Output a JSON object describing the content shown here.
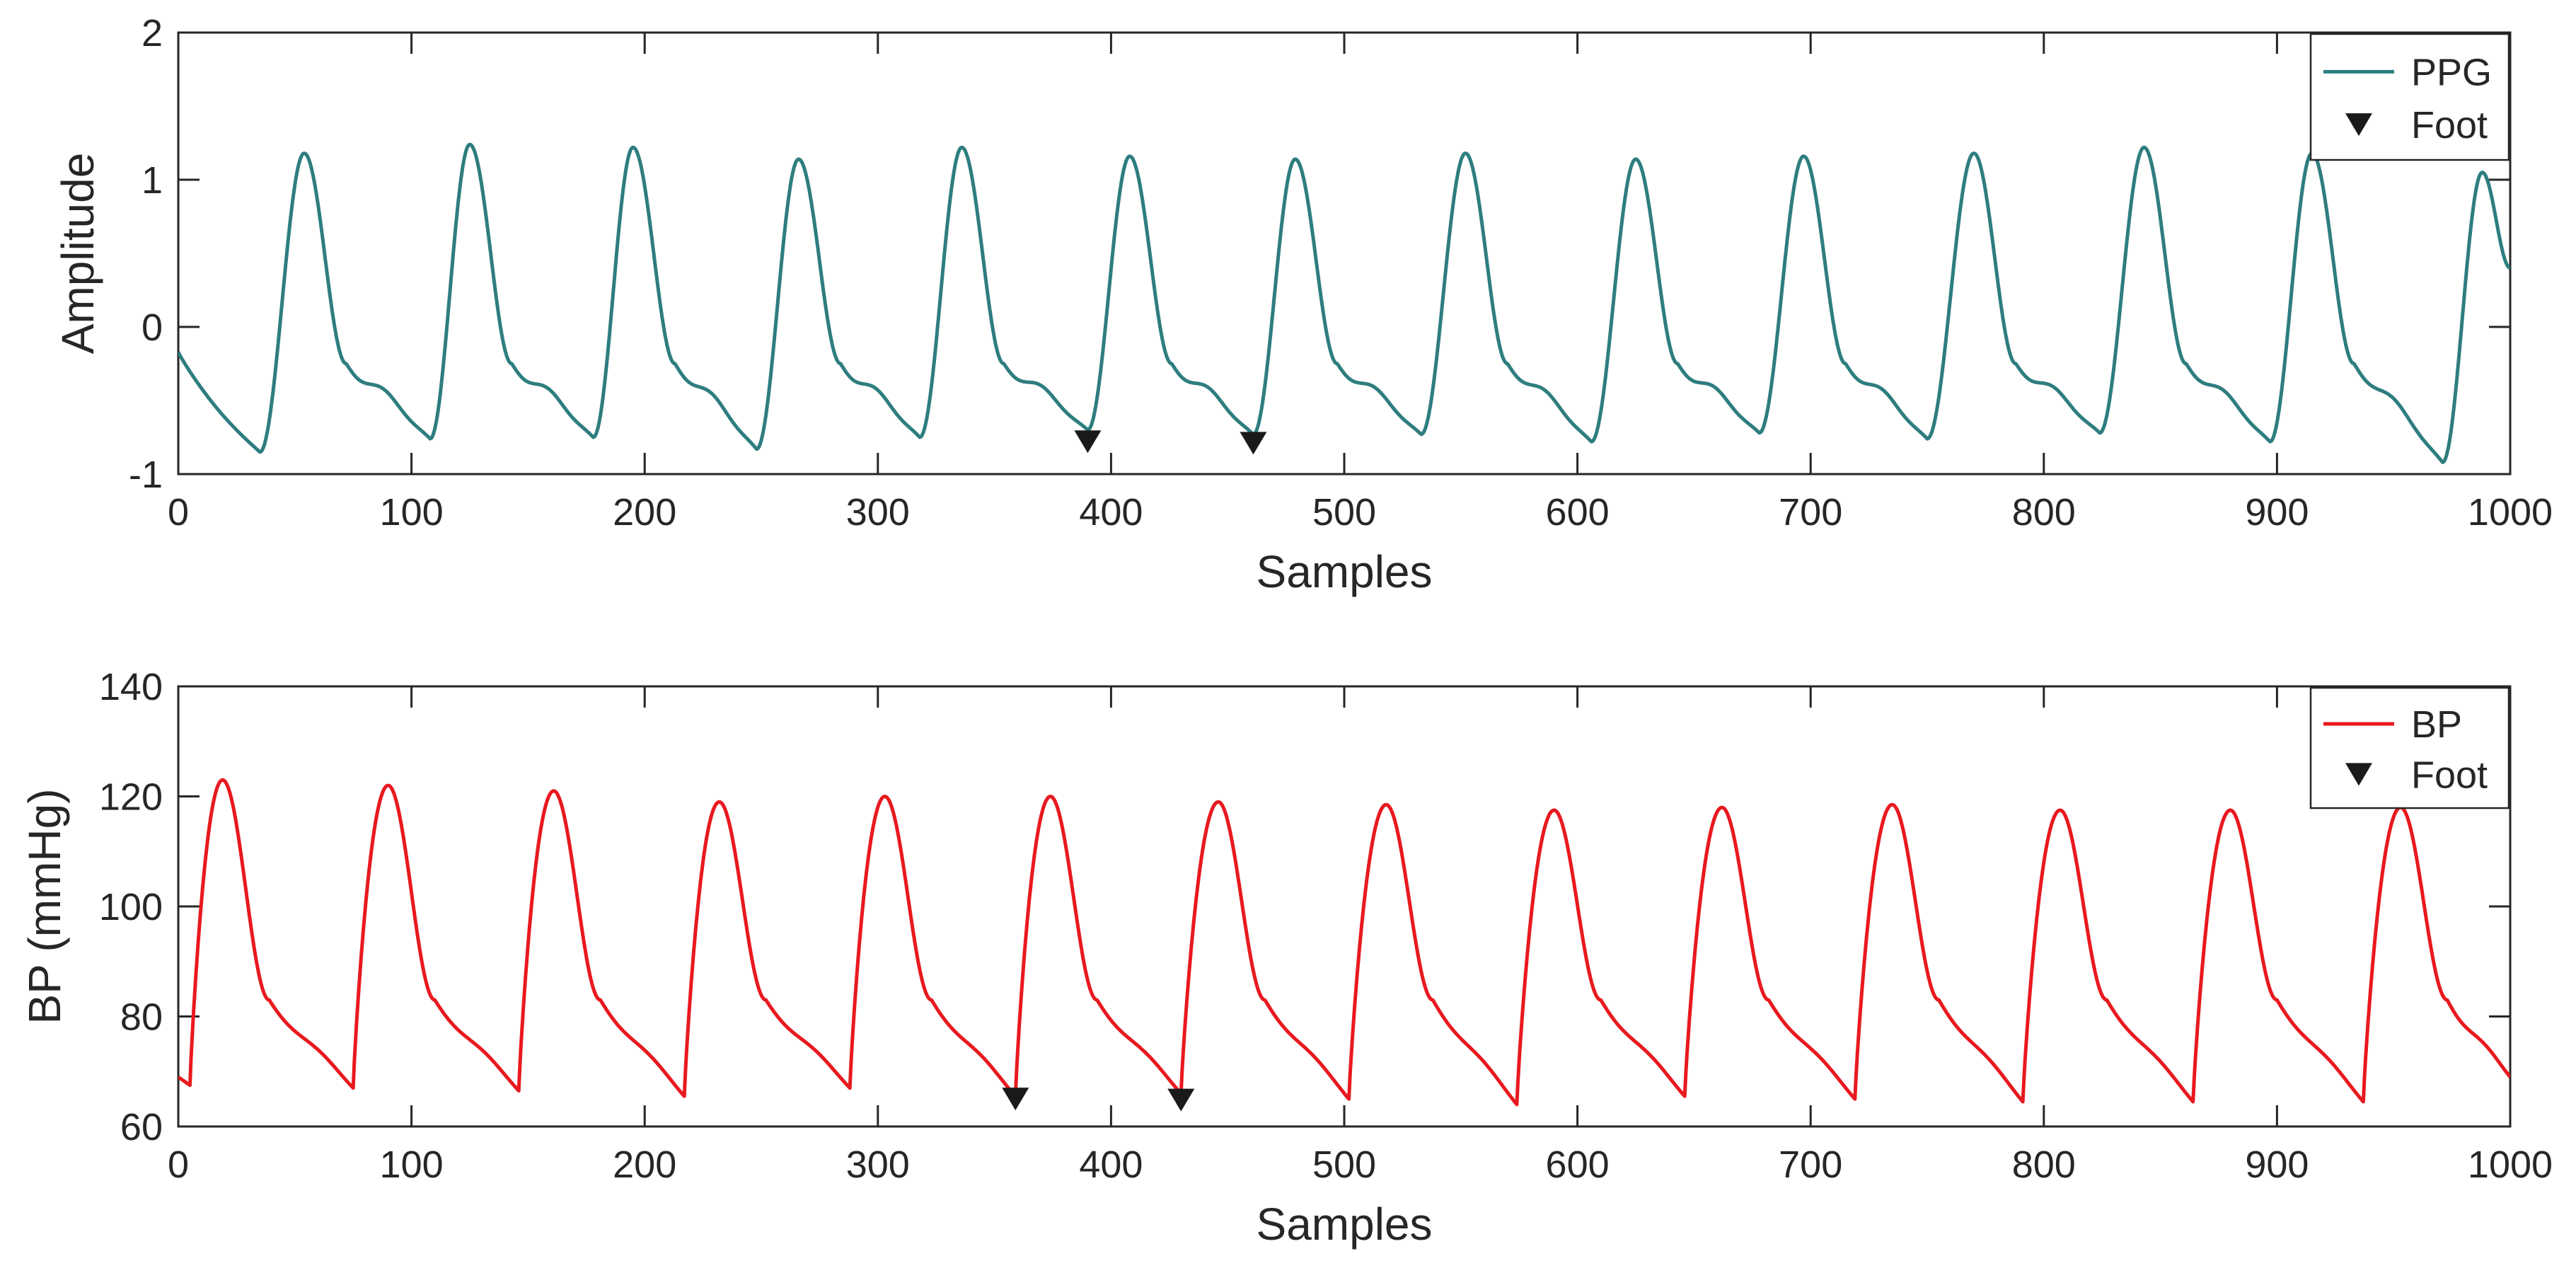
{
  "chart_data": [
    {
      "type": "line",
      "xlabel": "Samples",
      "ylabel": "Amplitude",
      "xlim": [
        0,
        1000
      ],
      "ylim": [
        -1,
        2
      ],
      "xticks": [
        0,
        100,
        200,
        300,
        400,
        500,
        600,
        700,
        800,
        900,
        1000
      ],
      "yticks": [
        -1,
        0,
        1,
        2
      ],
      "xtick_labels": [
        "0",
        "100",
        "200",
        "300",
        "400",
        "500",
        "600",
        "700",
        "800",
        "900",
        "1000"
      ],
      "ytick_labels": [
        "-1",
        "0",
        "1",
        "2"
      ],
      "legend": {
        "position": "top-right",
        "entries": [
          "PPG",
          "Foot"
        ]
      },
      "series": [
        {
          "name": "PPG",
          "color": "#2E7D7F",
          "start_value": -0.17,
          "end_value": 0.4,
          "shape": "ppg",
          "beats": [
            {
              "foot_x": 35,
              "foot_y": -0.85,
              "peak_x": 54,
              "peak_y": 1.18
            },
            {
              "foot_x": 108,
              "foot_y": -0.76,
              "peak_x": 125,
              "peak_y": 1.24
            },
            {
              "foot_x": 178,
              "foot_y": -0.75,
              "peak_x": 195,
              "peak_y": 1.22
            },
            {
              "foot_x": 248,
              "foot_y": -0.83,
              "peak_x": 266,
              "peak_y": 1.14
            },
            {
              "foot_x": 318,
              "foot_y": -0.75,
              "peak_x": 336,
              "peak_y": 1.22
            },
            {
              "foot_x": 390,
              "foot_y": -0.7,
              "peak_x": 408,
              "peak_y": 1.16
            },
            {
              "foot_x": 461,
              "foot_y": -0.73,
              "peak_x": 479,
              "peak_y": 1.14
            },
            {
              "foot_x": 533,
              "foot_y": -0.73,
              "peak_x": 552,
              "peak_y": 1.18
            },
            {
              "foot_x": 606,
              "foot_y": -0.78,
              "peak_x": 625,
              "peak_y": 1.14
            },
            {
              "foot_x": 678,
              "foot_y": -0.72,
              "peak_x": 697,
              "peak_y": 1.16
            },
            {
              "foot_x": 750,
              "foot_y": -0.76,
              "peak_x": 770,
              "peak_y": 1.18
            },
            {
              "foot_x": 824,
              "foot_y": -0.72,
              "peak_x": 843,
              "peak_y": 1.22
            },
            {
              "foot_x": 897,
              "foot_y": -0.78,
              "peak_x": 915,
              "peak_y": 1.18
            },
            {
              "foot_x": 971,
              "foot_y": -0.92,
              "peak_x": 988,
              "peak_y": 1.05
            }
          ]
        }
      ],
      "foot_markers": [
        {
          "x": 390,
          "y": -0.78
        },
        {
          "x": 461,
          "y": -0.79
        }
      ]
    },
    {
      "type": "line",
      "xlabel": "Samples",
      "ylabel": "BP (mmHg)",
      "xlim": [
        0,
        1000
      ],
      "ylim": [
        60,
        140
      ],
      "xticks": [
        0,
        100,
        200,
        300,
        400,
        500,
        600,
        700,
        800,
        900,
        1000
      ],
      "yticks": [
        60,
        80,
        100,
        120,
        140
      ],
      "xtick_labels": [
        "0",
        "100",
        "200",
        "300",
        "400",
        "500",
        "600",
        "700",
        "800",
        "900",
        "1000"
      ],
      "ytick_labels": [
        "60",
        "80",
        "100",
        "120",
        "140"
      ],
      "legend": {
        "position": "top-right",
        "entries": [
          "BP",
          "Foot"
        ]
      },
      "series": [
        {
          "name": "BP",
          "color": "#E8191F",
          "start_value": 69,
          "end_value": 69,
          "shape": "bp",
          "beats": [
            {
              "foot_x": 5,
              "foot_y": 67.5,
              "peak_x": 19,
              "peak_y": 123
            },
            {
              "foot_x": 75,
              "foot_y": 67,
              "peak_x": 90,
              "peak_y": 122
            },
            {
              "foot_x": 146,
              "foot_y": 66.5,
              "peak_x": 161,
              "peak_y": 121
            },
            {
              "foot_x": 217,
              "foot_y": 65.5,
              "peak_x": 232,
              "peak_y": 119
            },
            {
              "foot_x": 288,
              "foot_y": 67,
              "peak_x": 303,
              "peak_y": 120
            },
            {
              "foot_x": 359,
              "foot_y": 65.5,
              "peak_x": 374,
              "peak_y": 120
            },
            {
              "foot_x": 430,
              "foot_y": 66,
              "peak_x": 446,
              "peak_y": 119
            },
            {
              "foot_x": 502,
              "foot_y": 65,
              "peak_x": 518,
              "peak_y": 118.5
            },
            {
              "foot_x": 574,
              "foot_y": 64,
              "peak_x": 590,
              "peak_y": 117.5
            },
            {
              "foot_x": 646,
              "foot_y": 65.5,
              "peak_x": 662,
              "peak_y": 118
            },
            {
              "foot_x": 719,
              "foot_y": 65,
              "peak_x": 735,
              "peak_y": 118.5
            },
            {
              "foot_x": 791,
              "foot_y": 64.5,
              "peak_x": 807,
              "peak_y": 117.5
            },
            {
              "foot_x": 864,
              "foot_y": 64.5,
              "peak_x": 880,
              "peak_y": 117.5
            },
            {
              "foot_x": 937,
              "foot_y": 64.5,
              "peak_x": 953,
              "peak_y": 118
            }
          ]
        }
      ],
      "foot_markers": [
        {
          "x": 359,
          "y": 65
        },
        {
          "x": 430,
          "y": 64.8
        }
      ]
    }
  ]
}
